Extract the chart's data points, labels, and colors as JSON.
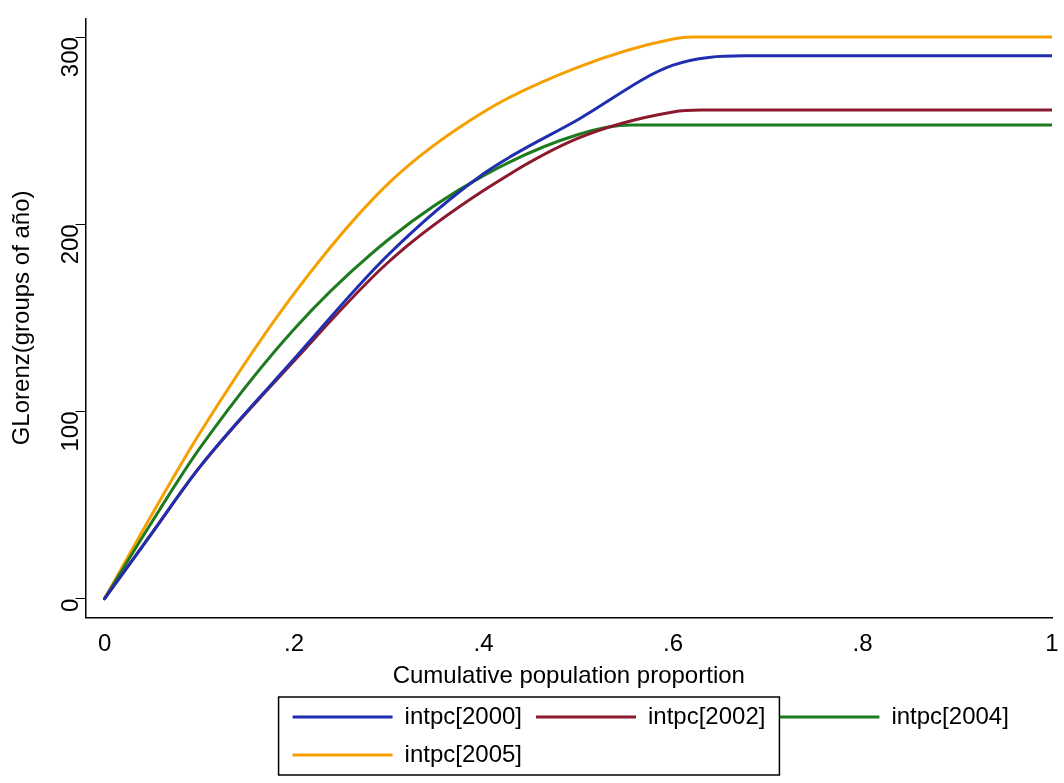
{
  "chart_data": {
    "type": "line",
    "xlabel": "Cumulative population proportion",
    "ylabel": "GLorenz(groups of año)",
    "xlim": [
      -0.02,
      1
    ],
    "ylim": [
      -10,
      310
    ],
    "xticks": [
      0,
      {
        "value": 0.2,
        "label": ".2"
      },
      {
        "value": 0.4,
        "label": ".4"
      },
      {
        "value": 0.6,
        "label": ".6"
      },
      {
        "value": 0.8,
        "label": ".8"
      },
      1
    ],
    "yticks": [
      0,
      100,
      200,
      300
    ],
    "grid": false,
    "legend": "bottom",
    "marker": "none",
    "line_style": "solid",
    "series": [
      {
        "name": "intpc[2000]",
        "color": "#1f2fb0",
        "x": [
          0,
          0.05,
          0.1,
          0.2,
          0.3,
          0.4,
          0.5,
          0.6,
          0.675,
          1
        ],
        "values": [
          0,
          35,
          70,
          128,
          184,
          227,
          256,
          285,
          290,
          290
        ]
      },
      {
        "name": "intpc[2002]",
        "color": "#8b1a2e",
        "x": [
          0,
          0.05,
          0.1,
          0.2,
          0.3,
          0.4,
          0.5,
          0.6,
          0.63,
          1
        ],
        "values": [
          0,
          35,
          70,
          127,
          180,
          218,
          246,
          260,
          261,
          261
        ]
      },
      {
        "name": "intpc[2004]",
        "color": "#1e7a1e",
        "x": [
          0,
          0.05,
          0.1,
          0.2,
          0.3,
          0.4,
          0.5,
          0.556,
          1
        ],
        "values": [
          0,
          41,
          80,
          144,
          192,
          226,
          248,
          253,
          253
        ]
      },
      {
        "name": "intpc[2005]",
        "color": "#f5a000",
        "x": [
          0,
          0.05,
          0.1,
          0.2,
          0.3,
          0.4,
          0.5,
          0.6,
          0.62,
          1
        ],
        "values": [
          0,
          45,
          88,
          163,
          222,
          260,
          284,
          299,
          300,
          300
        ]
      }
    ]
  }
}
